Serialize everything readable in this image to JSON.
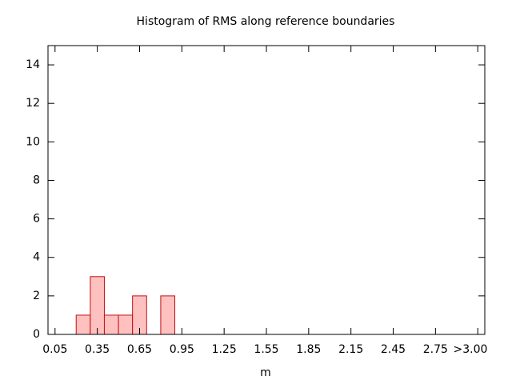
{
  "chart_data": {
    "type": "histogram",
    "title": "Histogram of RMS along reference boundaries",
    "x_label": "m",
    "bins": [
      0.2,
      0.3,
      0.4,
      0.5,
      0.6,
      0.7,
      0.8,
      0.9
    ],
    "counts": [
      1,
      3,
      1,
      1,
      2,
      0,
      2
    ],
    "color": "#ffc0c0",
    "edge_color": "#c01010",
    "xlim": [
      0,
      3.1
    ],
    "xticks": [
      0.05,
      0.35,
      0.65,
      0.95,
      1.25,
      1.55,
      1.85,
      2.15,
      2.45,
      2.75,
      {
        "value": 3.05,
        "label": ">3.00"
      }
    ],
    "ylim": [
      0,
      15
    ],
    "yticks": [
      0,
      2,
      4,
      6,
      8,
      10,
      12,
      14
    ]
  }
}
